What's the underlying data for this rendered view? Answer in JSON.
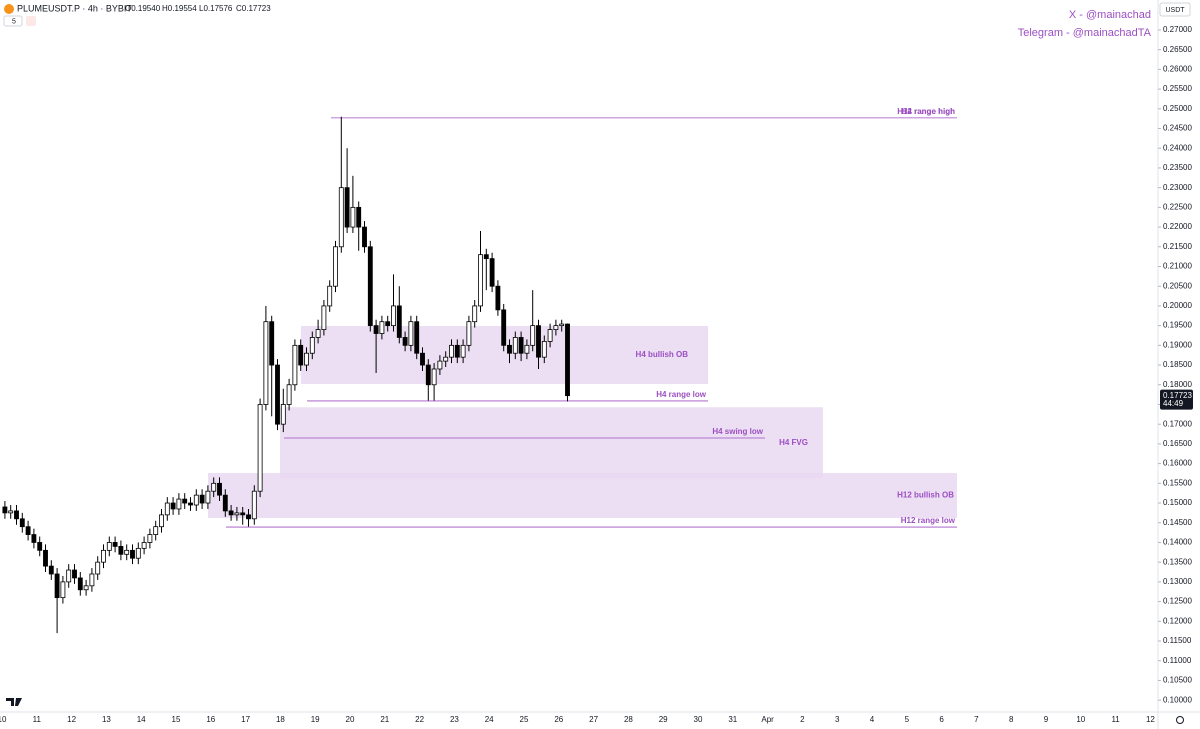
{
  "header": {
    "symbol": "PLUMEUSDT.P · 4h · BYBIT",
    "open": "O0.19540",
    "high": "H0.19554",
    "low": "L0.17576",
    "close": "C0.17723",
    "interval_badge": "5"
  },
  "credits": [
    "X - @mainachad",
    "Telegram - @mainachadTA"
  ],
  "currency": "USDT",
  "chart_data": {
    "type": "candlestick",
    "x_labels": [
      "10",
      "11",
      "12",
      "13",
      "14",
      "15",
      "16",
      "17",
      "18",
      "19",
      "20",
      "21",
      "22",
      "23",
      "24",
      "25",
      "26",
      "27",
      "28",
      "29",
      "30",
      "31",
      "Apr",
      "2",
      "3",
      "4",
      "5",
      "6",
      "7",
      "8",
      "9",
      "10",
      "11",
      "12"
    ],
    "open": [
      0.149,
      0.1475,
      0.148,
      0.146,
      0.144,
      0.142,
      0.14,
      0.138,
      0.134,
      0.132,
      0.126,
      0.13,
      0.133,
      0.131,
      0.128,
      0.129,
      0.132,
      0.135,
      0.138,
      0.14,
      0.139,
      0.137,
      0.138,
      0.136,
      0.1385,
      0.14,
      0.142,
      0.144,
      0.147,
      0.15,
      0.1485,
      0.151,
      0.15,
      0.1495,
      0.152,
      0.15,
      0.153,
      0.155,
      0.152,
      0.148,
      0.147,
      0.1475,
      0.147,
      0.146,
      0.153,
      0.175,
      0.196,
      0.185,
      0.17,
      0.175,
      0.18,
      0.19,
      0.185,
      0.188,
      0.192,
      0.194,
      0.2,
      0.205,
      0.215,
      0.23,
      0.22,
      0.225,
      0.22,
      0.215,
      0.195,
      0.193,
      0.196,
      0.195,
      0.2,
      0.192,
      0.19,
      0.196,
      0.188,
      0.185,
      0.18,
      0.184,
      0.186,
      0.187,
      0.19,
      0.187,
      0.19,
      0.196,
      0.2,
      0.213,
      0.212,
      0.205,
      0.199,
      0.19,
      0.188,
      0.192,
      0.188,
      0.19,
      0.195,
      0.187,
      0.191,
      0.194,
      0.195,
      0.1954
    ],
    "high": [
      0.1505,
      0.1495,
      0.1495,
      0.1475,
      0.1455,
      0.1435,
      0.1415,
      0.1395,
      0.1355,
      0.1335,
      0.1315,
      0.1345,
      0.1345,
      0.1325,
      0.1305,
      0.1335,
      0.1365,
      0.1395,
      0.1415,
      0.1415,
      0.1405,
      0.1395,
      0.1395,
      0.14,
      0.1415,
      0.1435,
      0.1455,
      0.1485,
      0.1515,
      0.1515,
      0.1525,
      0.1525,
      0.1515,
      0.1535,
      0.1535,
      0.1545,
      0.1565,
      0.1565,
      0.1535,
      0.1495,
      0.149,
      0.149,
      0.1485,
      0.1545,
      0.1765,
      0.2,
      0.1975,
      0.1865,
      0.179,
      0.1815,
      0.1915,
      0.1915,
      0.1895,
      0.1935,
      0.1965,
      0.2015,
      0.2065,
      0.2165,
      0.248,
      0.24,
      0.233,
      0.2265,
      0.2215,
      0.2165,
      0.1965,
      0.1975,
      0.1975,
      0.208,
      0.205,
      0.1935,
      0.1975,
      0.1975,
      0.1895,
      0.1865,
      0.1855,
      0.1875,
      0.1885,
      0.1915,
      0.1915,
      0.1915,
      0.1975,
      0.2015,
      0.219,
      0.2145,
      0.2135,
      0.2065,
      0.2005,
      0.1915,
      0.1935,
      0.1935,
      0.1915,
      0.204,
      0.1965,
      0.1925,
      0.1955,
      0.1965,
      0.1965,
      0.19554
    ],
    "low": [
      0.146,
      0.146,
      0.1445,
      0.1425,
      0.1405,
      0.1385,
      0.1365,
      0.1325,
      0.1305,
      0.117,
      0.1245,
      0.1285,
      0.1295,
      0.1265,
      0.1265,
      0.1275,
      0.1305,
      0.1335,
      0.1365,
      0.1375,
      0.1355,
      0.1355,
      0.1345,
      0.1345,
      0.137,
      0.1385,
      0.1405,
      0.1425,
      0.1455,
      0.147,
      0.147,
      0.1485,
      0.148,
      0.148,
      0.1485,
      0.1485,
      0.1515,
      0.1505,
      0.1465,
      0.1455,
      0.1455,
      0.1445,
      0.144,
      0.1445,
      0.1515,
      0.1735,
      0.172,
      0.1685,
      0.168,
      0.1735,
      0.1785,
      0.1835,
      0.1835,
      0.1865,
      0.1905,
      0.1925,
      0.1985,
      0.2035,
      0.2135,
      0.2185,
      0.2185,
      0.214,
      0.2135,
      0.1935,
      0.183,
      0.1915,
      0.1935,
      0.1935,
      0.1905,
      0.1885,
      0.1885,
      0.1865,
      0.1835,
      0.176,
      0.176,
      0.1825,
      0.1845,
      0.1855,
      0.1855,
      0.1855,
      0.1885,
      0.1945,
      0.1985,
      0.204,
      0.2035,
      0.1975,
      0.1885,
      0.1855,
      0.1865,
      0.186,
      0.1865,
      0.1885,
      0.184,
      0.1855,
      0.1895,
      0.1925,
      0.1935,
      0.17576
    ],
    "close": [
      0.1475,
      0.148,
      0.146,
      0.144,
      0.142,
      0.14,
      0.138,
      0.134,
      0.132,
      0.126,
      0.13,
      0.133,
      0.131,
      0.128,
      0.129,
      0.132,
      0.135,
      0.138,
      0.14,
      0.139,
      0.137,
      0.138,
      0.136,
      0.1385,
      0.14,
      0.142,
      0.144,
      0.147,
      0.15,
      0.1485,
      0.151,
      0.15,
      0.1495,
      0.152,
      0.15,
      0.153,
      0.155,
      0.152,
      0.148,
      0.147,
      0.1475,
      0.147,
      0.146,
      0.153,
      0.175,
      0.196,
      0.185,
      0.17,
      0.175,
      0.18,
      0.19,
      0.185,
      0.188,
      0.192,
      0.194,
      0.2,
      0.205,
      0.215,
      0.23,
      0.22,
      0.225,
      0.22,
      0.215,
      0.195,
      0.193,
      0.196,
      0.195,
      0.2,
      0.192,
      0.19,
      0.196,
      0.188,
      0.185,
      0.18,
      0.184,
      0.186,
      0.187,
      0.19,
      0.187,
      0.19,
      0.196,
      0.2,
      0.213,
      0.212,
      0.205,
      0.199,
      0.19,
      0.188,
      0.192,
      0.188,
      0.19,
      0.195,
      0.187,
      0.191,
      0.194,
      0.195,
      0.1954,
      0.17723
    ],
    "last_price_label": "0.17723",
    "countdown": "44:49",
    "up_color": "#ffffff",
    "down_color": "#000000",
    "zone_color": "#e9d8f1",
    "line_color": "#9c4fc3",
    "zones": [
      {
        "label": "H4 bullish OB",
        "top": 0.1949,
        "bottom": 0.1802
      },
      {
        "label": "H4 FVG",
        "top": 0.1743,
        "bottom": 0.1563
      },
      {
        "label": "H12 bullish OB",
        "top": 0.1576,
        "bottom": 0.1462
      }
    ],
    "levels": [
      {
        "label": "H4 range high",
        "value": 0.2477
      },
      {
        "label": "H12 range high",
        "value": 0.2477
      },
      {
        "label": "H4 range low",
        "value": 0.1759
      },
      {
        "label": "H4 swing low",
        "value": 0.1665
      },
      {
        "label": "H12 range low",
        "value": 0.1439
      }
    ],
    "ylim": [
      0.0975,
      0.2776
    ],
    "yticks": [
      {
        "value": 0.27,
        "label": "0.27000"
      },
      {
        "value": 0.265,
        "label": "0.26500"
      },
      {
        "value": 0.26,
        "label": "0.26000"
      },
      {
        "value": 0.255,
        "label": "0.25500"
      },
      {
        "value": 0.25,
        "label": "0.25000"
      },
      {
        "value": 0.245,
        "label": "0.24500"
      },
      {
        "value": 0.24,
        "label": "0.24000"
      },
      {
        "value": 0.235,
        "label": "0.23500"
      },
      {
        "value": 0.23,
        "label": "0.23000"
      },
      {
        "value": 0.225,
        "label": "0.22500"
      },
      {
        "value": 0.22,
        "label": "0.22000"
      },
      {
        "value": 0.215,
        "label": "0.21500"
      },
      {
        "value": 0.21,
        "label": "0.21000"
      },
      {
        "value": 0.205,
        "label": "0.20500"
      },
      {
        "value": 0.2,
        "label": "0.20000"
      },
      {
        "value": 0.195,
        "label": "0.19500"
      },
      {
        "value": 0.19,
        "label": "0.19000"
      },
      {
        "value": 0.185,
        "label": "0.18500"
      },
      {
        "value": 0.18,
        "label": "0.18000"
      },
      {
        "value": 0.175,
        "label": "0.17500"
      },
      {
        "value": 0.17,
        "label": "0.17000"
      },
      {
        "value": 0.165,
        "label": "0.16500"
      },
      {
        "value": 0.16,
        "label": "0.16000"
      },
      {
        "value": 0.155,
        "label": "0.15500"
      },
      {
        "value": 0.15,
        "label": "0.15000"
      },
      {
        "value": 0.145,
        "label": "0.14500"
      },
      {
        "value": 0.14,
        "label": "0.14000"
      },
      {
        "value": 0.135,
        "label": "0.13500"
      },
      {
        "value": 0.13,
        "label": "0.13000"
      },
      {
        "value": 0.125,
        "label": "0.12500"
      },
      {
        "value": 0.12,
        "label": "0.12000"
      },
      {
        "value": 0.115,
        "label": "0.11500"
      },
      {
        "value": 0.11,
        "label": "0.11000"
      },
      {
        "value": 0.105,
        "label": "0.10500"
      },
      {
        "value": 0.1,
        "label": "0.10000"
      }
    ]
  }
}
